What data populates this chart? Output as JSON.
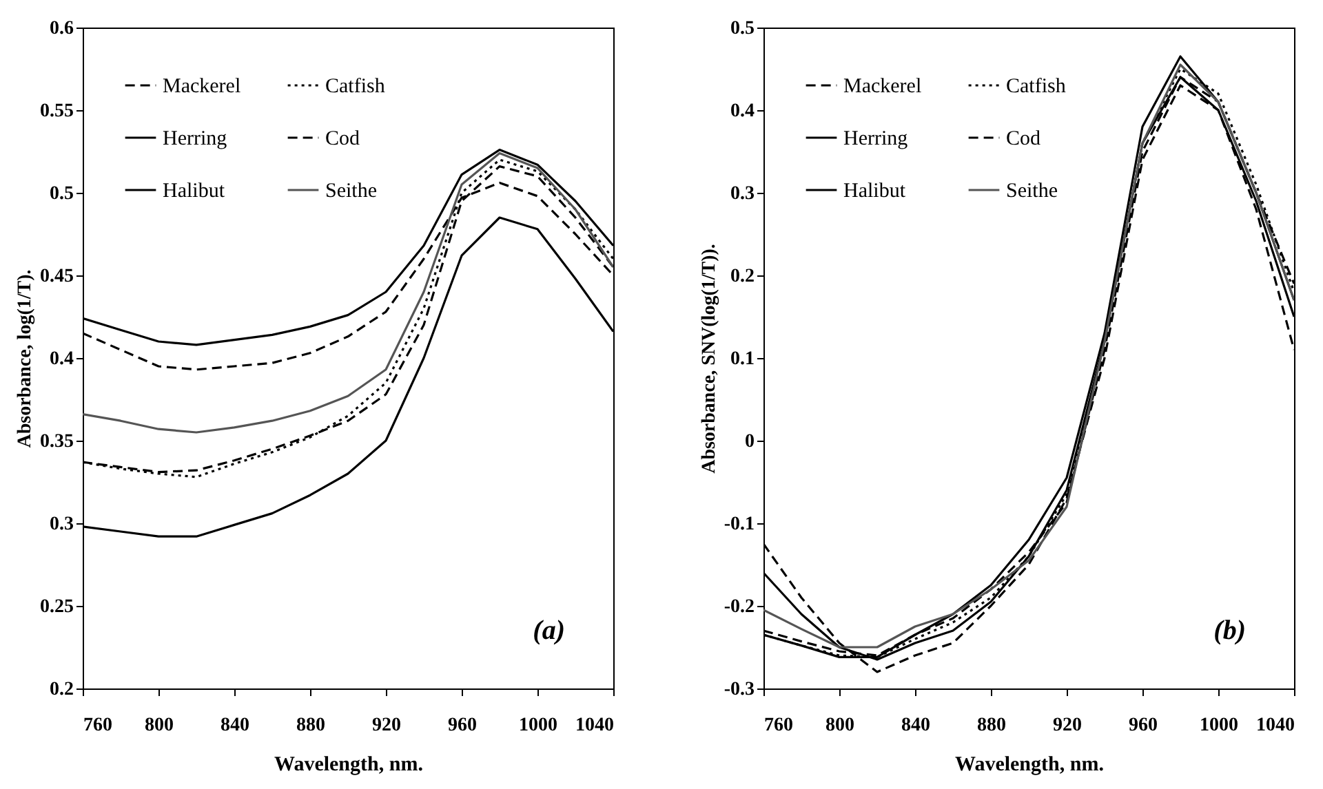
{
  "chart_data": [
    {
      "type": "line",
      "xlabel": "Wavelength, nm.",
      "ylabel": "Absorbance, log(1/T).",
      "annotations": [
        "(a)"
      ],
      "x": [
        760,
        780,
        800,
        820,
        840,
        860,
        880,
        900,
        920,
        940,
        960,
        980,
        1000,
        1020,
        1040
      ],
      "xlim": [
        760,
        1040
      ],
      "xticks": [
        760,
        800,
        840,
        880,
        920,
        960,
        1000,
        1040
      ],
      "ylim": [
        0.2,
        0.6
      ],
      "yticks": [
        0.2,
        0.25,
        0.3,
        0.35,
        0.4,
        0.45,
        0.5,
        0.55,
        0.6
      ],
      "grid": false,
      "legend": "top left",
      "series": [
        {
          "name": "Mackerel",
          "color": "#000000",
          "line_style": "dashed",
          "values": [
            0.415,
            0.405,
            0.395,
            0.393,
            0.395,
            0.397,
            0.403,
            0.413,
            0.428,
            0.46,
            0.497,
            0.506,
            0.498,
            0.475,
            0.45
          ]
        },
        {
          "name": "Herring",
          "color": "#000000",
          "line_style": "solid",
          "values": [
            0.424,
            0.417,
            0.41,
            0.408,
            0.411,
            0.414,
            0.419,
            0.426,
            0.44,
            0.468,
            0.511,
            0.526,
            0.517,
            0.495,
            0.468
          ]
        },
        {
          "name": "Halibut",
          "color": "#000000",
          "line_style": "solid",
          "values": [
            0.298,
            0.295,
            0.292,
            0.292,
            0.299,
            0.306,
            0.317,
            0.33,
            0.35,
            0.4,
            0.462,
            0.485,
            0.478,
            0.448,
            0.416
          ]
        },
        {
          "name": "Catfish",
          "color": "#000000",
          "line_style": "dotted",
          "values": [
            0.337,
            0.333,
            0.33,
            0.328,
            0.336,
            0.343,
            0.352,
            0.365,
            0.385,
            0.43,
            0.5,
            0.52,
            0.513,
            0.49,
            0.46
          ]
        },
        {
          "name": "Cod",
          "color": "#000000",
          "line_style": "dashed",
          "values": [
            0.337,
            0.334,
            0.331,
            0.332,
            0.338,
            0.345,
            0.353,
            0.362,
            0.378,
            0.42,
            0.495,
            0.516,
            0.51,
            0.485,
            0.455
          ]
        },
        {
          "name": "Seithe",
          "color": "#555555",
          "line_style": "solid",
          "values": [
            0.366,
            0.362,
            0.357,
            0.355,
            0.358,
            0.362,
            0.368,
            0.377,
            0.393,
            0.44,
            0.505,
            0.524,
            0.515,
            0.49,
            0.455
          ]
        }
      ]
    },
    {
      "type": "line",
      "xlabel": "Wavelength, nm.",
      "ylabel": "Absorbance, SNV(log(1/T)).",
      "annotations": [
        "(b)"
      ],
      "x": [
        760,
        780,
        800,
        820,
        840,
        860,
        880,
        900,
        920,
        940,
        960,
        980,
        1000,
        1020,
        1040
      ],
      "xlim": [
        760,
        1040
      ],
      "xticks": [
        760,
        800,
        840,
        880,
        920,
        960,
        1000,
        1040
      ],
      "ylim": [
        -0.3,
        0.5
      ],
      "yticks": [
        -0.3,
        -0.2,
        -0.1,
        0,
        0.1,
        0.2,
        0.3,
        0.4,
        0.5
      ],
      "grid": false,
      "legend": "top left",
      "series": [
        {
          "name": "Mackerel",
          "color": "#000000",
          "line_style": "dashed",
          "values": [
            -0.125,
            -0.19,
            -0.245,
            -0.28,
            -0.26,
            -0.245,
            -0.2,
            -0.15,
            -0.07,
            0.1,
            0.34,
            0.43,
            0.4,
            0.28,
            0.11
          ]
        },
        {
          "name": "Herring",
          "color": "#000000",
          "line_style": "solid",
          "values": [
            -0.16,
            -0.21,
            -0.25,
            -0.265,
            -0.245,
            -0.23,
            -0.195,
            -0.14,
            -0.06,
            0.12,
            0.36,
            0.44,
            0.4,
            0.29,
            0.15
          ]
        },
        {
          "name": "Halibut",
          "color": "#000000",
          "line_style": "solid",
          "values": [
            -0.235,
            -0.248,
            -0.262,
            -0.262,
            -0.235,
            -0.21,
            -0.175,
            -0.12,
            -0.045,
            0.13,
            0.38,
            0.465,
            0.41,
            0.3,
            0.17
          ]
        },
        {
          "name": "Catfish",
          "color": "#000000",
          "line_style": "dotted",
          "values": [
            -0.235,
            -0.248,
            -0.26,
            -0.262,
            -0.24,
            -0.22,
            -0.19,
            -0.14,
            -0.065,
            0.12,
            0.36,
            0.45,
            0.42,
            0.31,
            0.18
          ]
        },
        {
          "name": "Cod",
          "color": "#000000",
          "line_style": "dashed",
          "values": [
            -0.23,
            -0.243,
            -0.255,
            -0.26,
            -0.235,
            -0.215,
            -0.18,
            -0.135,
            -0.075,
            0.11,
            0.35,
            0.44,
            0.41,
            0.3,
            0.19
          ]
        },
        {
          "name": "Seithe",
          "color": "#555555",
          "line_style": "solid",
          "values": [
            -0.205,
            -0.228,
            -0.25,
            -0.25,
            -0.225,
            -0.21,
            -0.18,
            -0.145,
            -0.08,
            0.12,
            0.36,
            0.455,
            0.41,
            0.3,
            0.17
          ]
        }
      ]
    }
  ]
}
